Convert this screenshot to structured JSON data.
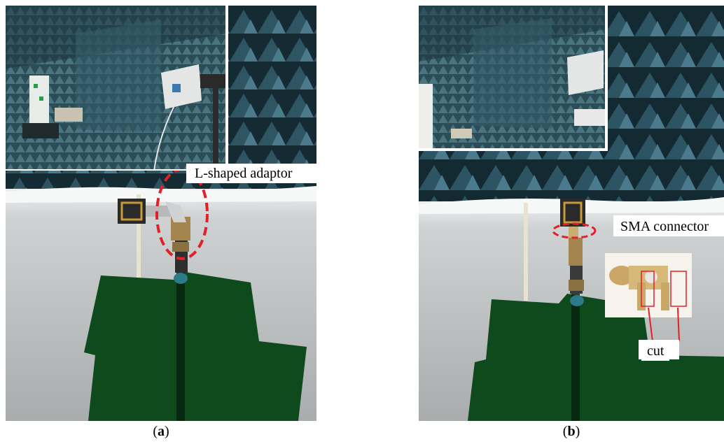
{
  "panel_a": {
    "caption_open": "(",
    "caption_letter": "a",
    "caption_close": ")",
    "annotation": "L-shaped  adaptor"
  },
  "panel_b": {
    "caption_open": "(",
    "caption_letter": "b",
    "caption_close": ")",
    "annotation_connector": "SMA connector",
    "annotation_cut": "cut"
  },
  "colors": {
    "chamber_absorber": "#2c4a55",
    "foam_white": "#c9cbcc",
    "green_sheet": "#0e4a1c",
    "highlight_red": "#e0202a",
    "gold_pcb": "#c79a3a"
  }
}
